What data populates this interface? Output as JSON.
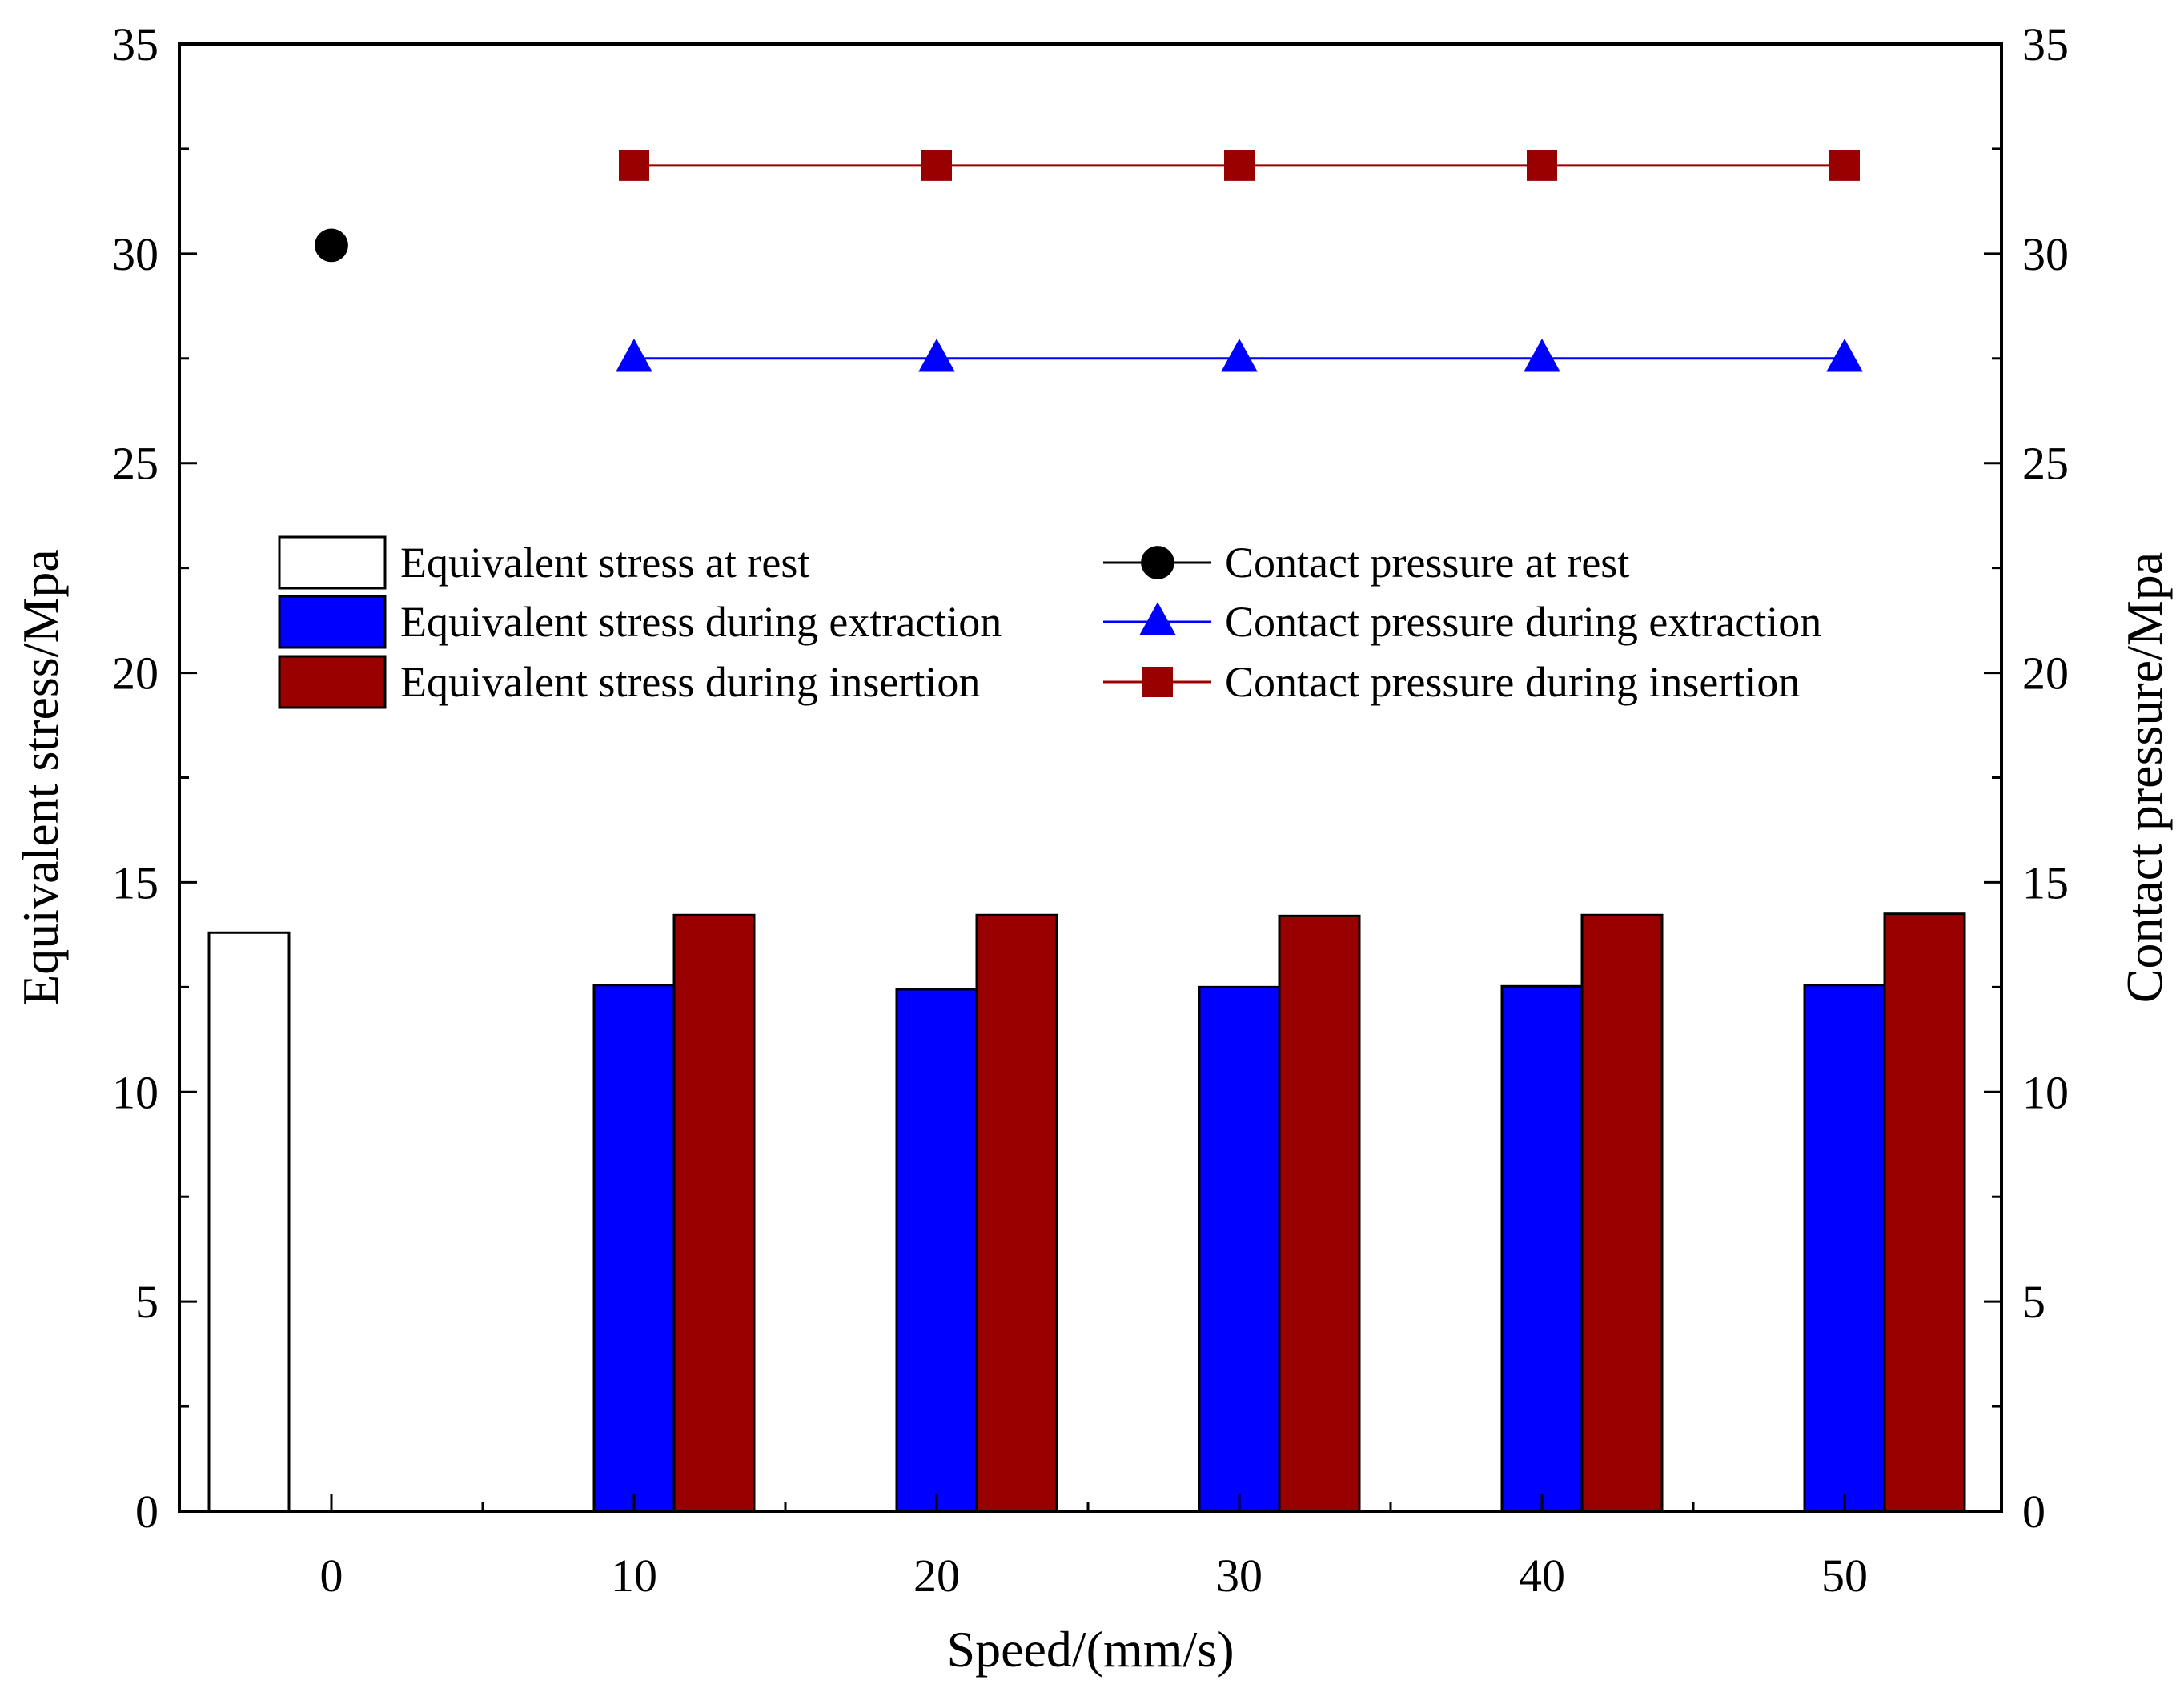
{
  "chart_data": {
    "type": "bar",
    "x_categories": [
      "0",
      "10",
      "20",
      "30",
      "40",
      "50"
    ],
    "xlabel": "Speed/(mm/s)",
    "ylabel_left": "Equivalent stress/Mpa",
    "ylabel_right": "Contact pressure/Mpa",
    "ylim_left": [
      0,
      35
    ],
    "ylim_right": [
      0,
      35
    ],
    "y_ticks": [
      "0",
      "5",
      "10",
      "15",
      "20",
      "25",
      "30",
      "35"
    ],
    "grid": false,
    "legend_position": "upper-middle",
    "bar_series": [
      {
        "name": "Equivalent stress at rest",
        "color": "#ffffff",
        "edge": "#000000",
        "x": [
          0
        ],
        "values": [
          13.8
        ]
      },
      {
        "name": "Equivalent stress during extraction",
        "color": "#0000ff",
        "edge": "#000000",
        "x": [
          10,
          20,
          30,
          40,
          50
        ],
        "values": [
          12.55,
          12.45,
          12.5,
          12.52,
          12.55
        ]
      },
      {
        "name": "Equivalent stress during insertion",
        "color": "#990000",
        "edge": "#000000",
        "x": [
          10,
          20,
          30,
          40,
          50
        ],
        "values": [
          14.22,
          14.22,
          14.2,
          14.22,
          14.25
        ]
      }
    ],
    "line_series": [
      {
        "name": "Contact pressure at rest",
        "color": "#000000",
        "marker": "circle",
        "x": [
          0
        ],
        "values": [
          30.2
        ]
      },
      {
        "name": "Contact pressure during extraction",
        "color": "#0000ff",
        "marker": "triangle",
        "x": [
          10,
          20,
          30,
          40,
          50
        ],
        "values": [
          27.5,
          27.5,
          27.5,
          27.5,
          27.5
        ]
      },
      {
        "name": "Contact pressure during insertion",
        "color": "#990000",
        "marker": "square",
        "x": [
          10,
          20,
          30,
          40,
          50
        ],
        "values": [
          32.1,
          32.1,
          32.1,
          32.1,
          32.1
        ]
      }
    ]
  }
}
